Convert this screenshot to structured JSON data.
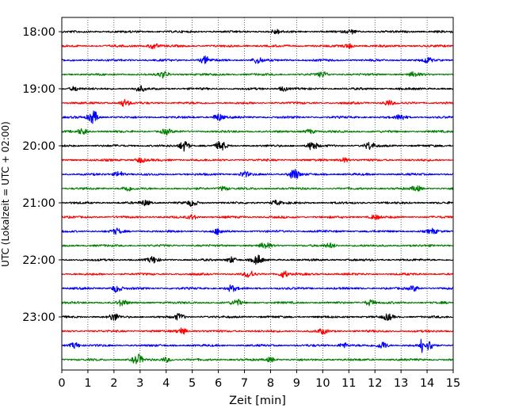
{
  "chart_data": {
    "type": "line",
    "xlabel": "Zeit  [min]",
    "ylabel": "UTC (Lokalzeit = UTC + 02:00)",
    "xlim": [
      0,
      15
    ],
    "x_ticks": [
      "0",
      "1",
      "2",
      "3",
      "4",
      "5",
      "6",
      "7",
      "8",
      "9",
      "10",
      "11",
      "12",
      "13",
      "14",
      "15"
    ],
    "y_tick_labels": [
      "18:00",
      "19:00",
      "20:00",
      "21:00",
      "22:00",
      "23:00"
    ],
    "grid": "vertical-dotted",
    "row_interval_min": 15,
    "trace_colors": [
      "#000000",
      "#ff0000",
      "#0000ff",
      "#008000"
    ],
    "traces": [
      {
        "start": "18:00",
        "events": [
          {
            "t": 8.2,
            "a": 0.3
          },
          {
            "t": 11.1,
            "a": 0.25
          }
        ]
      },
      {
        "start": "18:15",
        "events": [
          {
            "t": 3.5,
            "a": 0.4
          },
          {
            "t": 11.0,
            "a": 0.3
          }
        ]
      },
      {
        "start": "18:30",
        "events": [
          {
            "t": 5.5,
            "a": 0.5
          },
          {
            "t": 7.5,
            "a": 0.45
          },
          {
            "t": 14.0,
            "a": 0.35
          }
        ]
      },
      {
        "start": "18:45",
        "events": [
          {
            "t": 3.9,
            "a": 0.4
          },
          {
            "t": 10.0,
            "a": 0.35
          },
          {
            "t": 13.5,
            "a": 0.3
          }
        ]
      },
      {
        "start": "19:00",
        "events": [
          {
            "t": 0.5,
            "a": 0.3
          },
          {
            "t": 3.0,
            "a": 0.35
          },
          {
            "t": 8.5,
            "a": 0.3
          }
        ]
      },
      {
        "start": "19:15",
        "events": [
          {
            "t": 2.4,
            "a": 0.45
          },
          {
            "t": 12.5,
            "a": 0.35
          }
        ]
      },
      {
        "start": "19:30",
        "events": [
          {
            "t": 1.2,
            "a": 0.9
          },
          {
            "t": 6.0,
            "a": 0.5
          },
          {
            "t": 13.0,
            "a": 0.4
          }
        ]
      },
      {
        "start": "19:45",
        "events": [
          {
            "t": 0.8,
            "a": 0.4
          },
          {
            "t": 4.0,
            "a": 0.35
          },
          {
            "t": 9.5,
            "a": 0.3
          }
        ]
      },
      {
        "start": "20:00",
        "events": [
          {
            "t": 4.7,
            "a": 0.7
          },
          {
            "t": 6.1,
            "a": 0.6
          },
          {
            "t": 9.6,
            "a": 0.6
          },
          {
            "t": 11.8,
            "a": 0.5
          }
        ]
      },
      {
        "start": "20:15",
        "events": [
          {
            "t": 3.0,
            "a": 0.35
          },
          {
            "t": 10.8,
            "a": 0.3
          }
        ]
      },
      {
        "start": "20:30",
        "events": [
          {
            "t": 2.2,
            "a": 0.4
          },
          {
            "t": 7.0,
            "a": 0.35
          },
          {
            "t": 8.9,
            "a": 0.8
          }
        ]
      },
      {
        "start": "20:45",
        "events": [
          {
            "t": 2.5,
            "a": 0.35
          },
          {
            "t": 6.2,
            "a": 0.3
          },
          {
            "t": 13.6,
            "a": 0.35
          }
        ]
      },
      {
        "start": "21:00",
        "events": [
          {
            "t": 3.2,
            "a": 0.35
          },
          {
            "t": 5.0,
            "a": 0.4
          },
          {
            "t": 8.2,
            "a": 0.3
          }
        ]
      },
      {
        "start": "21:15",
        "events": [
          {
            "t": 5.0,
            "a": 0.3
          },
          {
            "t": 12.0,
            "a": 0.3
          }
        ]
      },
      {
        "start": "21:30",
        "events": [
          {
            "t": 2.1,
            "a": 0.35
          },
          {
            "t": 6.0,
            "a": 0.35
          },
          {
            "t": 14.2,
            "a": 0.3
          }
        ]
      },
      {
        "start": "21:45",
        "events": [
          {
            "t": 7.8,
            "a": 0.4
          },
          {
            "t": 10.3,
            "a": 0.3
          }
        ]
      },
      {
        "start": "22:00",
        "events": [
          {
            "t": 3.5,
            "a": 0.4
          },
          {
            "t": 6.5,
            "a": 0.4
          },
          {
            "t": 7.5,
            "a": 0.6
          }
        ]
      },
      {
        "start": "22:15",
        "events": [
          {
            "t": 7.2,
            "a": 0.45
          },
          {
            "t": 8.5,
            "a": 0.45
          }
        ]
      },
      {
        "start": "22:30",
        "events": [
          {
            "t": 2.1,
            "a": 0.5
          },
          {
            "t": 6.5,
            "a": 0.4
          },
          {
            "t": 13.5,
            "a": 0.35
          }
        ]
      },
      {
        "start": "22:45",
        "events": [
          {
            "t": 2.3,
            "a": 0.4
          },
          {
            "t": 6.7,
            "a": 0.4
          },
          {
            "t": 11.8,
            "a": 0.4
          }
        ]
      },
      {
        "start": "23:00",
        "events": [
          {
            "t": 2.0,
            "a": 0.45
          },
          {
            "t": 4.5,
            "a": 0.4
          },
          {
            "t": 12.5,
            "a": 0.4
          }
        ]
      },
      {
        "start": "23:15",
        "events": [
          {
            "t": 4.6,
            "a": 0.45
          },
          {
            "t": 10.0,
            "a": 0.3
          }
        ]
      },
      {
        "start": "23:30",
        "events": [
          {
            "t": 0.5,
            "a": 0.4
          },
          {
            "t": 10.8,
            "a": 0.35
          },
          {
            "t": 12.3,
            "a": 0.5
          },
          {
            "t": 13.8,
            "a": 2.0
          },
          {
            "t": 14.1,
            "a": 0.6
          }
        ]
      },
      {
        "start": "23:45",
        "events": [
          {
            "t": 2.9,
            "a": 0.7
          },
          {
            "t": 4.0,
            "a": 0.3
          },
          {
            "t": 8.0,
            "a": 0.3
          }
        ]
      }
    ]
  }
}
